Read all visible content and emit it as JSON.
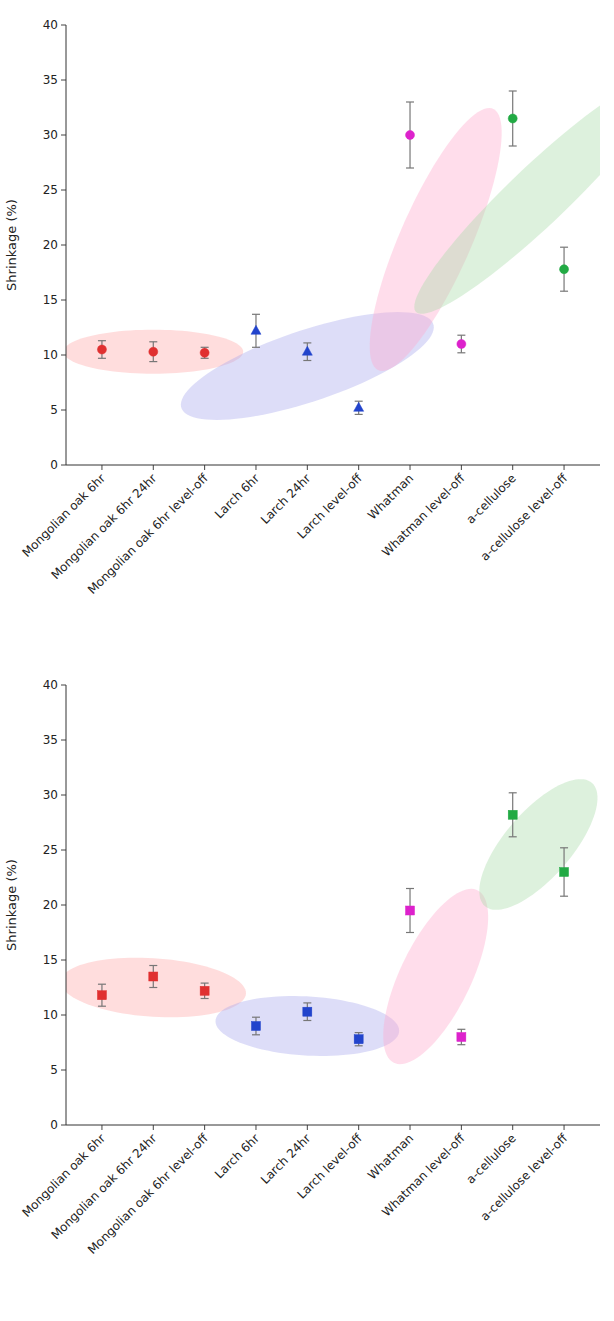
{
  "chart_data": [
    {
      "type": "scatter",
      "ylabel": "Shrinkage (%)",
      "categories": [
        "Mongolian oak 6hr",
        "Mongolian oak 6hr 24hr",
        "Mongolian oak 6hr level-off",
        "Larch 6hr",
        "Larch 24hr",
        "Larch level-off",
        "Whatman",
        "Whatman level-off",
        "a-cellulose",
        "a-cellulose level-off"
      ],
      "xlim": [
        -0.7,
        9.7
      ],
      "ylim": [
        0,
        40
      ],
      "yticks": [
        0,
        5,
        10,
        15,
        20,
        25,
        30,
        35,
        40
      ],
      "series": [
        {
          "color": "#e03030",
          "marker": "circle",
          "values": [
            10.5,
            10.3,
            10.2,
            null,
            null,
            null,
            null,
            null,
            null,
            null
          ],
          "errors": [
            0.8,
            0.9,
            0.5,
            null,
            null,
            null,
            null,
            null,
            null,
            null
          ]
        },
        {
          "color": "#2244cc",
          "marker": "triangle",
          "values": [
            null,
            null,
            null,
            12.2,
            10.3,
            5.2,
            null,
            null,
            null,
            null
          ],
          "errors": [
            null,
            null,
            null,
            1.5,
            0.8,
            0.6,
            null,
            null,
            null,
            null
          ]
        },
        {
          "color": "#dd22cc",
          "marker": "circle",
          "values": [
            null,
            null,
            null,
            null,
            null,
            null,
            30.0,
            11.0,
            null,
            null
          ],
          "errors": [
            null,
            null,
            null,
            null,
            null,
            null,
            3.0,
            0.8,
            null,
            null
          ]
        },
        {
          "color": "#22aa44",
          "marker": "circle",
          "values": [
            null,
            null,
            null,
            null,
            null,
            null,
            null,
            null,
            31.5,
            17.8
          ],
          "errors": [
            null,
            null,
            null,
            null,
            null,
            null,
            null,
            null,
            2.5,
            2.0
          ]
        }
      ],
      "ellipses": [
        {
          "cx": 1.0,
          "cy": 10.3,
          "width": 3.5,
          "height": 4.0,
          "angle": 0,
          "color": "#ffaaaa"
        },
        {
          "cx": 4.0,
          "cy": 9.0,
          "width": 3.2,
          "height": 10.5,
          "angle": -22,
          "color": "#aaaaee"
        },
        {
          "cx": 6.5,
          "cy": 20.5,
          "width": 1.5,
          "height": 24.0,
          "angle": -5,
          "color": "#ffaacc"
        },
        {
          "cx": 8.5,
          "cy": 24.5,
          "width": 1.6,
          "height": 22.0,
          "angle": -12,
          "color": "#aaddaa"
        }
      ]
    },
    {
      "type": "scatter",
      "ylabel": "Shrinkage (%)",
      "categories": [
        "Mongolian oak 6hr",
        "Mongolian oak 6hr 24hr",
        "Mongolian oak 6hr level-off",
        "Larch 6hr",
        "Larch 24hr",
        "Larch level-off",
        "Whatman",
        "Whatman level-off",
        "a-cellulose",
        "a-cellulose level-off"
      ],
      "xlim": [
        -0.7,
        9.7
      ],
      "ylim": [
        0,
        40
      ],
      "yticks": [
        0,
        5,
        10,
        15,
        20,
        25,
        30,
        35,
        40
      ],
      "series": [
        {
          "color": "#e03030",
          "marker": "square",
          "values": [
            11.8,
            13.5,
            12.2,
            null,
            null,
            null,
            null,
            null,
            null,
            null
          ],
          "errors": [
            1.0,
            1.0,
            0.7,
            null,
            null,
            null,
            null,
            null,
            null,
            null
          ]
        },
        {
          "color": "#2244cc",
          "marker": "square",
          "values": [
            null,
            null,
            null,
            9.0,
            10.3,
            7.8,
            null,
            null,
            null,
            null
          ],
          "errors": [
            null,
            null,
            null,
            0.8,
            0.8,
            0.6,
            null,
            null,
            null,
            null
          ]
        },
        {
          "color": "#dd22cc",
          "marker": "square",
          "values": [
            null,
            null,
            null,
            null,
            null,
            null,
            19.5,
            8.0,
            null,
            null
          ],
          "errors": [
            null,
            null,
            null,
            null,
            null,
            null,
            2.0,
            0.7,
            null,
            null
          ]
        },
        {
          "color": "#22aa44",
          "marker": "square",
          "values": [
            null,
            null,
            null,
            null,
            null,
            null,
            null,
            null,
            28.2,
            23.0
          ],
          "errors": [
            null,
            null,
            null,
            null,
            null,
            null,
            null,
            null,
            2.0,
            2.2
          ]
        }
      ],
      "ellipses": [
        {
          "cx": 1.0,
          "cy": 12.5,
          "width": 3.5,
          "height": 5.5,
          "angle": 12,
          "color": "#ffaaaa"
        },
        {
          "cx": 4.0,
          "cy": 9.0,
          "width": 3.5,
          "height": 5.5,
          "angle": 10,
          "color": "#aaaaee"
        },
        {
          "cx": 6.5,
          "cy": 13.5,
          "width": 1.5,
          "height": 16.0,
          "angle": -5,
          "color": "#ffaacc"
        },
        {
          "cx": 8.5,
          "cy": 25.5,
          "width": 1.6,
          "height": 12.0,
          "angle": -8,
          "color": "#aaddaa"
        }
      ]
    }
  ]
}
